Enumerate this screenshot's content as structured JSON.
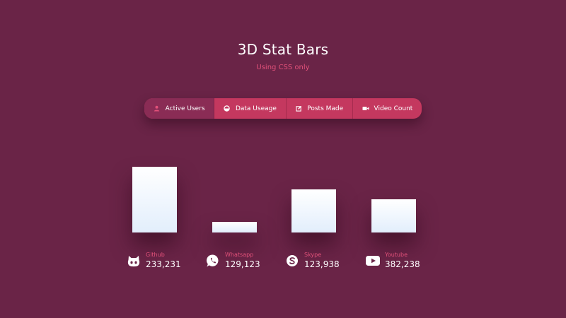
{
  "header": {
    "title": "3D Stat Bars",
    "subtitle": "Using CSS only"
  },
  "tabs": [
    {
      "label": "Active Users",
      "icon": "user-icon",
      "active": true
    },
    {
      "label": "Data Useage",
      "icon": "pie-icon",
      "active": false
    },
    {
      "label": "Posts Made",
      "icon": "edit-icon",
      "active": false
    },
    {
      "label": "Video Count",
      "icon": "video-camera-icon",
      "active": false
    }
  ],
  "colors": {
    "background": "#6a2447",
    "accent": "#e2517a",
    "tab_bar": "#c4385f",
    "tab_active": "#8a2c55",
    "bar_top": "#ffffff",
    "bar_bottom": "#e2eefc"
  },
  "chart_data": {
    "type": "bar",
    "categories": [
      "Github",
      "Whatsapp",
      "Skype",
      "Youtube"
    ],
    "values": [
      233231,
      129123,
      123938,
      382238
    ],
    "bar_levels": [
      1.0,
      0.16,
      0.66,
      0.5
    ],
    "value_labels": [
      "233,231",
      "129,123",
      "123,938",
      "382,238"
    ],
    "icons": [
      "github-icon",
      "whatsapp-icon",
      "skype-icon",
      "youtube-icon"
    ]
  }
}
